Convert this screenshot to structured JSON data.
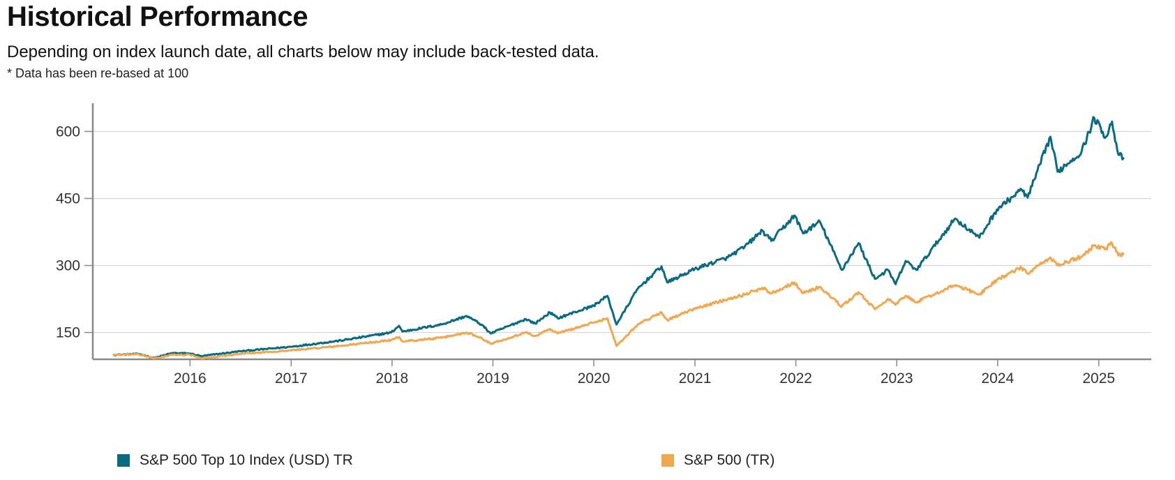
{
  "header": {
    "title": "Historical Performance",
    "subtitle": "Depending on index launch date, all charts below may include back-tested data.",
    "note": "* Data has been re-based at 100"
  },
  "chart_data": {
    "type": "line",
    "x_type": "date",
    "xlim": [
      "2015-03-31",
      "2025-03-31"
    ],
    "ylim": [
      90,
      660
    ],
    "yticks": [
      150,
      300,
      450,
      600
    ],
    "xticks": [
      "2016",
      "2017",
      "2018",
      "2019",
      "2020",
      "2021",
      "2022",
      "2023",
      "2024",
      "2025"
    ],
    "grid": "horizontal",
    "legend": "bottom",
    "series": [
      {
        "name": "S&P 500 Top 10 Index (USD) TR",
        "color": "#0a6a80",
        "points": [
          [
            "2015-03-31",
            100
          ],
          [
            "2015-06-30",
            102
          ],
          [
            "2015-08-25",
            93
          ],
          [
            "2015-10-30",
            104
          ],
          [
            "2016-01-01",
            103
          ],
          [
            "2016-02-11",
            97
          ],
          [
            "2016-06-30",
            108
          ],
          [
            "2016-12-30",
            118
          ],
          [
            "2017-06-30",
            132
          ],
          [
            "2017-12-29",
            150
          ],
          [
            "2018-01-26",
            165
          ],
          [
            "2018-02-08",
            152
          ],
          [
            "2018-06-29",
            168
          ],
          [
            "2018-09-28",
            187
          ],
          [
            "2018-11-20",
            168
          ],
          [
            "2018-12-24",
            148
          ],
          [
            "2019-04-30",
            180
          ],
          [
            "2019-06-03",
            170
          ],
          [
            "2019-07-26",
            195
          ],
          [
            "2019-08-23",
            182
          ],
          [
            "2019-12-31",
            210
          ],
          [
            "2020-02-19",
            232
          ],
          [
            "2020-03-23",
            168
          ],
          [
            "2020-06-08",
            248
          ],
          [
            "2020-09-02",
            298
          ],
          [
            "2020-09-23",
            262
          ],
          [
            "2020-12-31",
            292
          ],
          [
            "2021-04-30",
            318
          ],
          [
            "2021-06-30",
            342
          ],
          [
            "2021-09-02",
            378
          ],
          [
            "2021-10-04",
            355
          ],
          [
            "2021-12-27",
            412
          ],
          [
            "2022-01-27",
            372
          ],
          [
            "2022-03-29",
            398
          ],
          [
            "2022-06-16",
            290
          ],
          [
            "2022-08-16",
            350
          ],
          [
            "2022-10-14",
            270
          ],
          [
            "2022-11-30",
            290
          ],
          [
            "2022-12-28",
            258
          ],
          [
            "2023-02-02",
            310
          ],
          [
            "2023-03-13",
            290
          ],
          [
            "2023-07-31",
            405
          ],
          [
            "2023-10-27",
            362
          ],
          [
            "2023-12-29",
            425
          ],
          [
            "2024-03-28",
            470
          ],
          [
            "2024-04-19",
            452
          ],
          [
            "2024-07-10",
            588
          ],
          [
            "2024-08-05",
            510
          ],
          [
            "2024-10-31",
            555
          ],
          [
            "2024-12-16",
            630
          ],
          [
            "2025-01-27",
            588
          ],
          [
            "2025-02-18",
            622
          ],
          [
            "2025-03-13",
            548
          ],
          [
            "2025-03-31",
            540
          ]
        ]
      },
      {
        "name": "S&P 500 (TR)",
        "color": "#f0a850",
        "points": [
          [
            "2015-03-31",
            100
          ],
          [
            "2015-06-30",
            101
          ],
          [
            "2015-08-25",
            92
          ],
          [
            "2015-10-30",
            100
          ],
          [
            "2016-01-01",
            100
          ],
          [
            "2016-02-11",
            92
          ],
          [
            "2016-06-30",
            102
          ],
          [
            "2016-12-30",
            110
          ],
          [
            "2017-06-30",
            120
          ],
          [
            "2017-12-29",
            133
          ],
          [
            "2018-01-26",
            140
          ],
          [
            "2018-02-08",
            130
          ],
          [
            "2018-06-29",
            138
          ],
          [
            "2018-09-28",
            150
          ],
          [
            "2018-11-20",
            138
          ],
          [
            "2018-12-24",
            125
          ],
          [
            "2019-04-30",
            150
          ],
          [
            "2019-06-03",
            142
          ],
          [
            "2019-07-26",
            158
          ],
          [
            "2019-08-23",
            148
          ],
          [
            "2019-12-31",
            172
          ],
          [
            "2020-02-19",
            182
          ],
          [
            "2020-03-23",
            120
          ],
          [
            "2020-06-08",
            168
          ],
          [
            "2020-09-02",
            195
          ],
          [
            "2020-09-23",
            178
          ],
          [
            "2020-12-31",
            203
          ],
          [
            "2021-04-30",
            225
          ],
          [
            "2021-06-30",
            235
          ],
          [
            "2021-09-02",
            250
          ],
          [
            "2021-10-04",
            238
          ],
          [
            "2021-12-27",
            262
          ],
          [
            "2022-01-27",
            238
          ],
          [
            "2022-03-29",
            252
          ],
          [
            "2022-06-16",
            208
          ],
          [
            "2022-08-16",
            240
          ],
          [
            "2022-10-14",
            202
          ],
          [
            "2022-11-30",
            225
          ],
          [
            "2022-12-28",
            212
          ],
          [
            "2023-02-02",
            232
          ],
          [
            "2023-03-13",
            218
          ],
          [
            "2023-07-31",
            256
          ],
          [
            "2023-10-27",
            235
          ],
          [
            "2023-12-29",
            268
          ],
          [
            "2024-03-28",
            295
          ],
          [
            "2024-04-19",
            282
          ],
          [
            "2024-07-10",
            318
          ],
          [
            "2024-08-05",
            300
          ],
          [
            "2024-10-31",
            320
          ],
          [
            "2024-12-16",
            345
          ],
          [
            "2025-01-27",
            338
          ],
          [
            "2025-02-18",
            350
          ],
          [
            "2025-03-13",
            322
          ],
          [
            "2025-03-31",
            325
          ]
        ]
      }
    ]
  }
}
